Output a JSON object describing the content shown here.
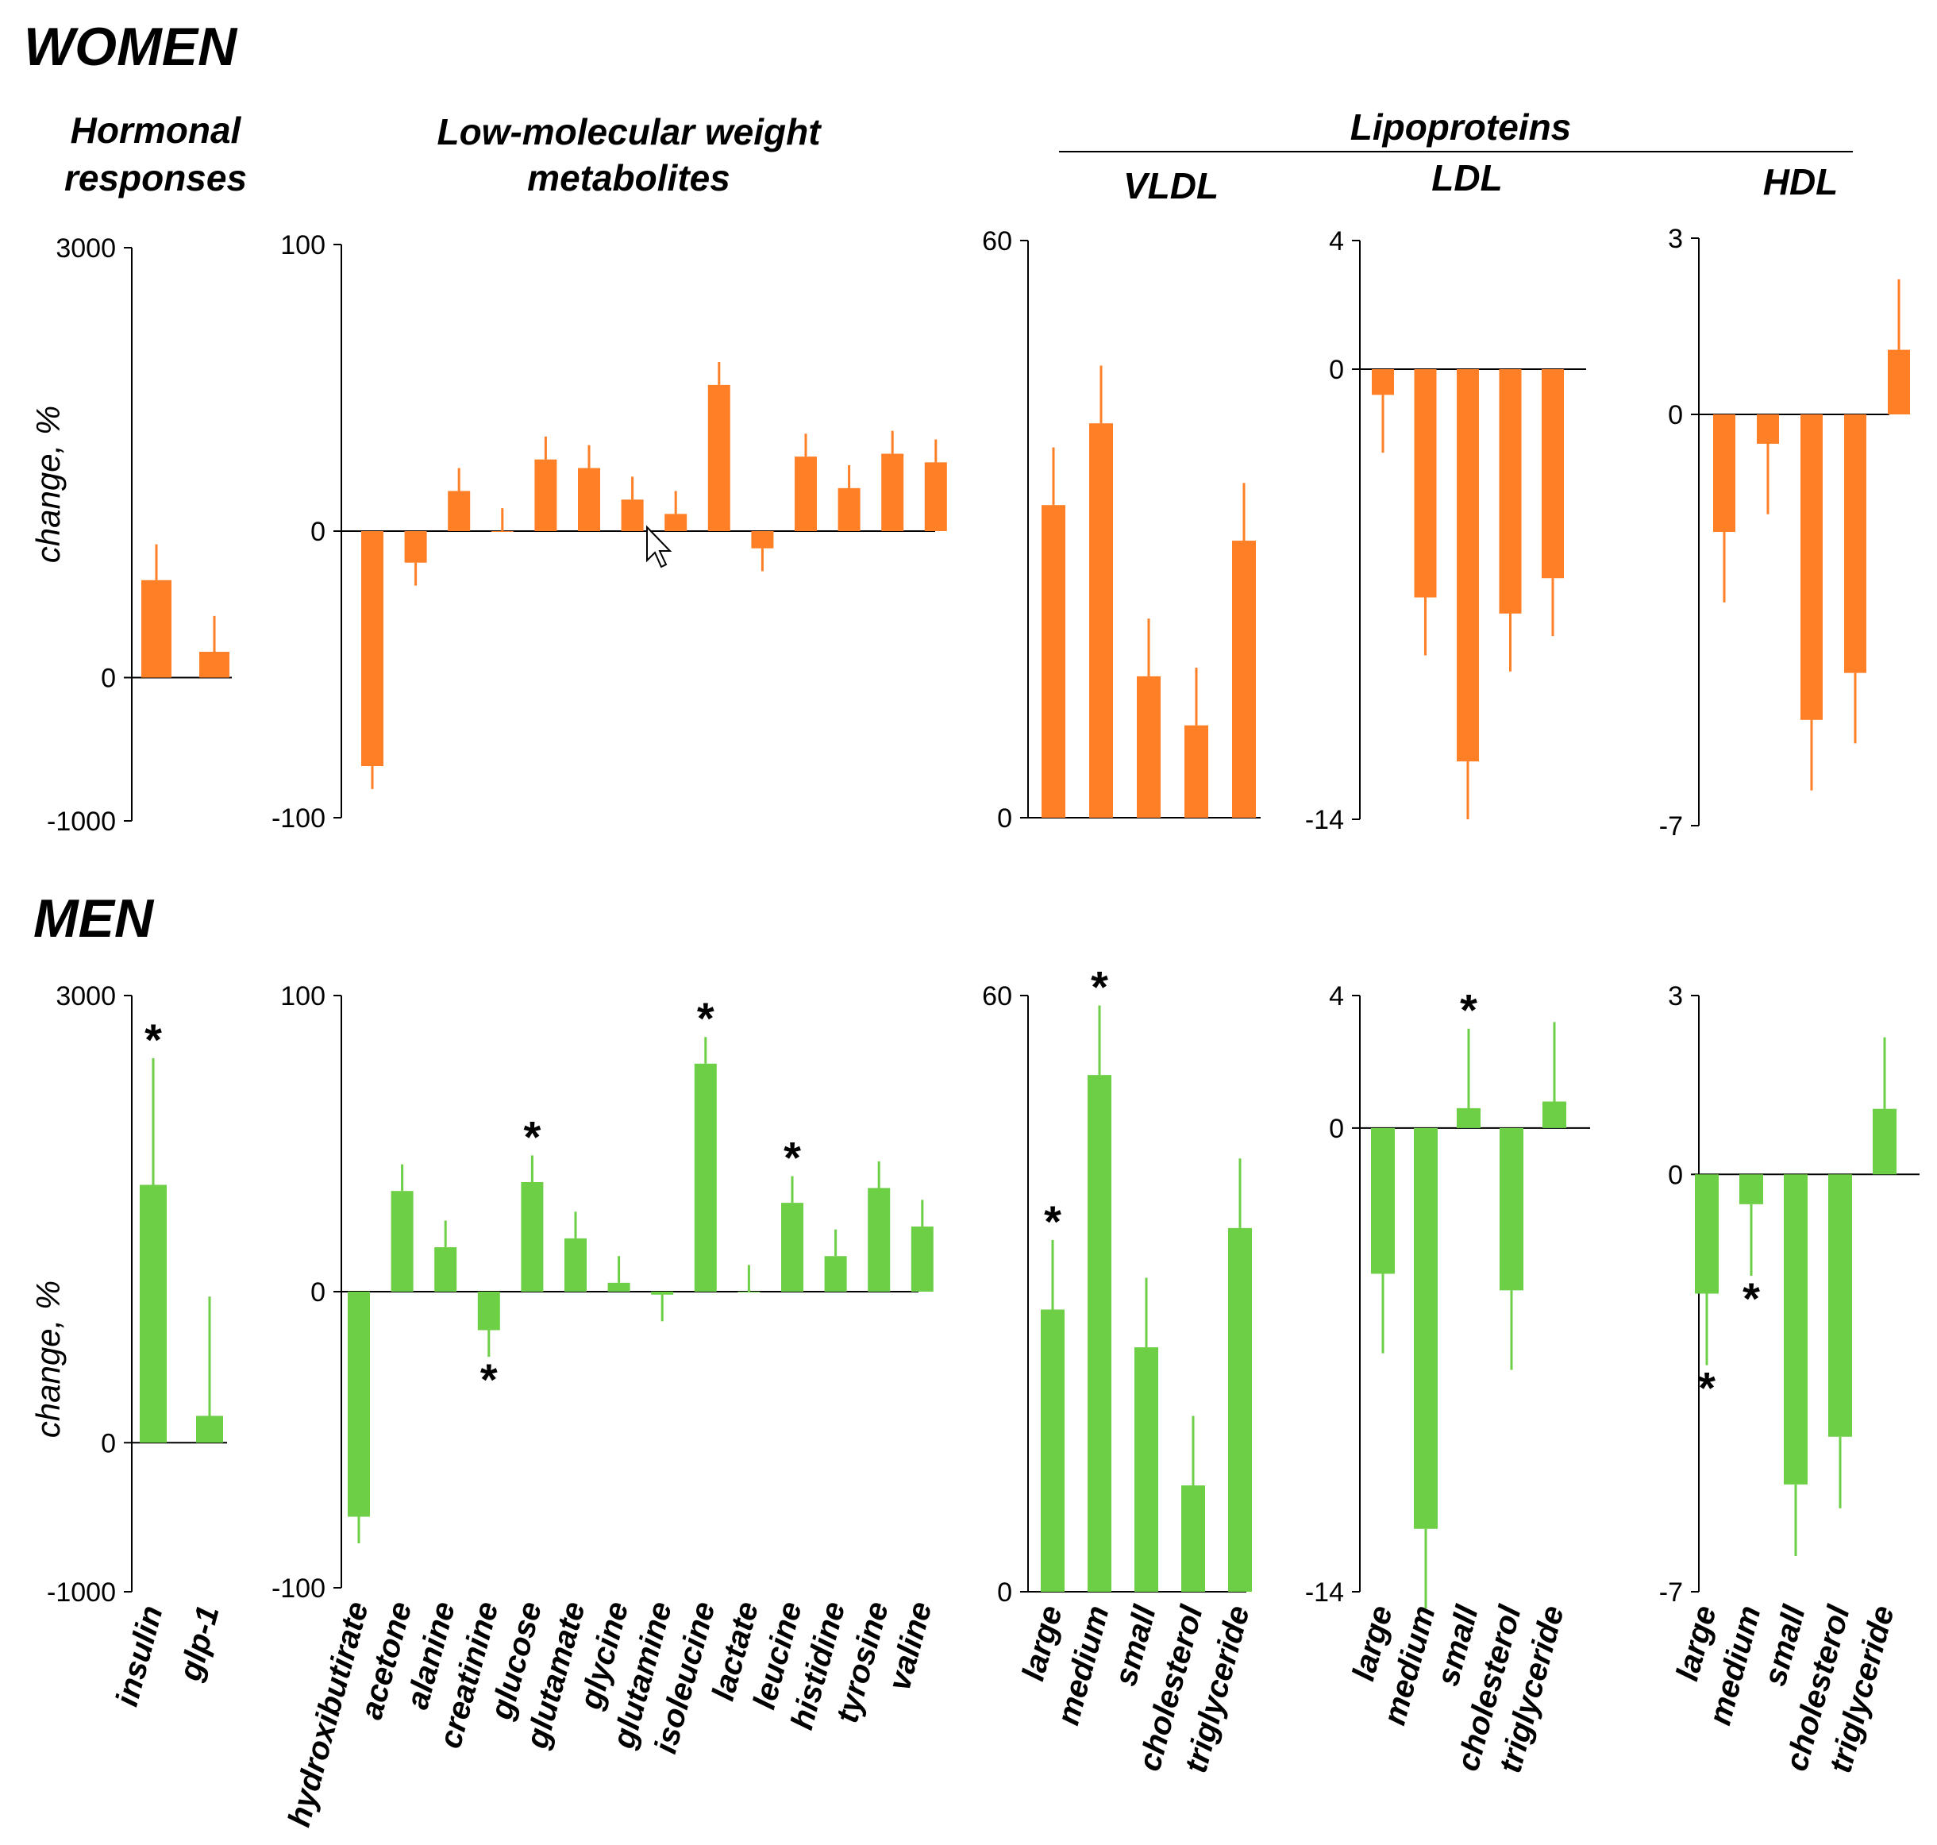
{
  "groups": {
    "women": "WOMEN",
    "men": "MEN"
  },
  "headers": {
    "hormonal": "Hormonal responses",
    "hormonal_line1": "Hormonal",
    "hormonal_line2": "responses",
    "metab_line1": "Low-molecular weight",
    "metab_line2": "metabolites",
    "lipoproteins": "Lipoproteins",
    "vldl": "VLDL",
    "ldl": "LDL",
    "hdl": "HDL"
  },
  "ylabel": "change, %",
  "colors": {
    "women": "#ff7f27",
    "men": "#6ccf45",
    "axis": "#000000"
  },
  "chart_data": [
    {
      "id": "w-hormonal",
      "type": "bar",
      "group": "WOMEN",
      "title": "Hormonal responses",
      "ylabel": "change, %",
      "ylim": [
        -1000,
        3000
      ],
      "yticks": [
        3000,
        0,
        -1000
      ],
      "categories": [
        "insulin",
        "glp-1"
      ],
      "values": [
        680,
        180
      ],
      "errors": [
        250,
        250
      ],
      "sig": [
        false,
        false
      ]
    },
    {
      "id": "w-metab",
      "type": "bar",
      "group": "WOMEN",
      "title": "Low-molecular weight metabolites",
      "ylim": [
        -100,
        100
      ],
      "yticks": [
        100,
        0,
        -100
      ],
      "categories": [
        "hydroxibutirate",
        "acetone",
        "alanine",
        "creatinine",
        "glucose",
        "glutamate",
        "glycine",
        "glutamine",
        "isoleucine",
        "lactate",
        "leucine",
        "histidine",
        "tyrosine",
        "valine"
      ],
      "values": [
        -82,
        -11,
        14,
        0,
        25,
        22,
        11,
        6,
        51,
        -6,
        26,
        15,
        27,
        24
      ],
      "errors": [
        8,
        8,
        8,
        8,
        8,
        8,
        8,
        8,
        8,
        8,
        8,
        8,
        8,
        8
      ],
      "sig": [
        false,
        false,
        false,
        false,
        false,
        false,
        false,
        false,
        false,
        false,
        false,
        false,
        false,
        false
      ]
    },
    {
      "id": "w-vldl",
      "type": "bar",
      "group": "WOMEN",
      "title": "VLDL",
      "ylim": [
        0,
        60
      ],
      "yticks": [
        60,
        0
      ],
      "categories": [
        "large",
        "medium",
        "small",
        "cholesterol",
        "triglyceride"
      ],
      "values": [
        32.5,
        41,
        14.7,
        9.6,
        28.8
      ],
      "errors": [
        6,
        6,
        6,
        6,
        6
      ],
      "sig": [
        false,
        false,
        false,
        false,
        false
      ]
    },
    {
      "id": "w-ldl",
      "type": "bar",
      "group": "WOMEN",
      "title": "LDL",
      "ylim": [
        -14,
        4
      ],
      "yticks": [
        4,
        0,
        -14
      ],
      "categories": [
        "large",
        "medium",
        "small",
        "cholesterol",
        "triglyceride"
      ],
      "values": [
        -0.8,
        -7.1,
        -12.2,
        -7.6,
        -6.5
      ],
      "errors": [
        1.8,
        1.8,
        1.8,
        1.8,
        1.8
      ],
      "sig": [
        false,
        false,
        false,
        false,
        false
      ]
    },
    {
      "id": "w-hdl",
      "type": "bar",
      "group": "WOMEN",
      "title": "HDL",
      "ylim": [
        -7,
        3
      ],
      "yticks": [
        3,
        0,
        -7
      ],
      "categories": [
        "large",
        "medium",
        "small",
        "cholesterol",
        "triglyceride"
      ],
      "values": [
        -2,
        -0.5,
        -5.2,
        -4.4,
        1.1
      ],
      "errors": [
        1.2,
        1.2,
        1.2,
        1.2,
        1.2
      ],
      "sig": [
        false,
        false,
        false,
        false,
        false
      ]
    },
    {
      "id": "m-hormonal",
      "type": "bar",
      "group": "MEN",
      "title": "Hormonal responses",
      "ylabel": "change, %",
      "ylim": [
        -1000,
        3000
      ],
      "yticks": [
        3000,
        0,
        -1000
      ],
      "categories": [
        "insulin",
        "glp-1"
      ],
      "values": [
        1730,
        180
      ],
      "errors": [
        850,
        800
      ],
      "sig": [
        true,
        false
      ]
    },
    {
      "id": "m-metab",
      "type": "bar",
      "group": "MEN",
      "title": "Low-molecular weight metabolites",
      "ylim": [
        -100,
        100
      ],
      "yticks": [
        100,
        0,
        -100
      ],
      "categories": [
        "hydroxibutirate",
        "acetone",
        "alanine",
        "creatinine",
        "glucose",
        "glutamate",
        "glycine",
        "glutamine",
        "isoleucine",
        "lactate",
        "leucine",
        "histidine",
        "tyrosine",
        "valine"
      ],
      "values": [
        -76,
        34,
        15,
        -13,
        37,
        18,
        3,
        -1,
        77,
        0,
        30,
        12,
        35,
        22
      ],
      "errors": [
        9,
        9,
        9,
        9,
        9,
        9,
        9,
        9,
        9,
        9,
        9,
        9,
        9,
        9
      ],
      "sig": [
        false,
        false,
        false,
        true,
        true,
        false,
        false,
        false,
        true,
        false,
        true,
        false,
        false,
        false
      ]
    },
    {
      "id": "m-vldl",
      "type": "bar",
      "group": "MEN",
      "title": "VLDL",
      "ylim": [
        0,
        60
      ],
      "yticks": [
        60,
        0
      ],
      "categories": [
        "large",
        "medium",
        "small",
        "cholesterol",
        "triglyceride"
      ],
      "values": [
        28.4,
        52,
        24.6,
        10.7,
        36.6
      ],
      "errors": [
        7,
        7,
        7,
        7,
        7
      ],
      "sig": [
        true,
        true,
        false,
        false,
        false
      ]
    },
    {
      "id": "m-ldl",
      "type": "bar",
      "group": "MEN",
      "title": "LDL",
      "ylim": [
        -14,
        4
      ],
      "yticks": [
        4,
        0,
        -14
      ],
      "categories": [
        "large",
        "medium",
        "small",
        "cholesterol",
        "triglyceride"
      ],
      "values": [
        -4.4,
        -12.1,
        0.6,
        -4.9,
        0.8
      ],
      "errors": [
        2.4,
        2.4,
        2.4,
        2.4,
        2.4
      ],
      "sig": [
        false,
        false,
        true,
        false,
        false
      ]
    },
    {
      "id": "m-hdl",
      "type": "bar",
      "group": "MEN",
      "title": "HDL",
      "ylim": [
        -7,
        3
      ],
      "yticks": [
        3,
        0,
        -7
      ],
      "categories": [
        "large",
        "medium",
        "small",
        "cholesterol",
        "triglyceride"
      ],
      "values": [
        -2,
        -0.5,
        -5.2,
        -4.4,
        1.1
      ],
      "errors": [
        1.2,
        1.2,
        1.2,
        1.2,
        1.2
      ],
      "sig": [
        true,
        true,
        false,
        false,
        false
      ]
    }
  ]
}
